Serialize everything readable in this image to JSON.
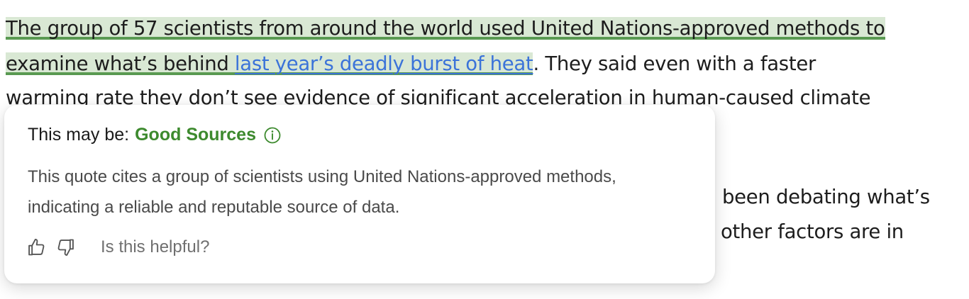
{
  "article": {
    "line1": "The group of 57 scientists from around the world used United Nations-approved methods to",
    "line2_highlight": "examine what’s behind ",
    "line2_link": "last year’s deadly burst of heat",
    "line2_rest": ". They said even with a faster",
    "line3": "warming rate they don’t see evidence of significant acceleration in human-caused climate",
    "line4_right": "been debating what’s",
    "line5_right": "other factors are in"
  },
  "popup": {
    "title_prefix": "This may be:",
    "verdict": "Good Sources",
    "body": "This quote cites a group of scientists using United Nations-approved methods, indicating a reliable and reputable source of data.",
    "feedback_question": "Is this helpful?"
  },
  "colors": {
    "highlight_bg": "#d9e8d4",
    "highlight_underline": "#5a9a52",
    "link": "#3b73d9",
    "verdict": "#3d8a2e"
  },
  "icons": {
    "info": "info-icon",
    "thumbs_up": "thumbs-up-icon",
    "thumbs_down": "thumbs-down-icon"
  }
}
